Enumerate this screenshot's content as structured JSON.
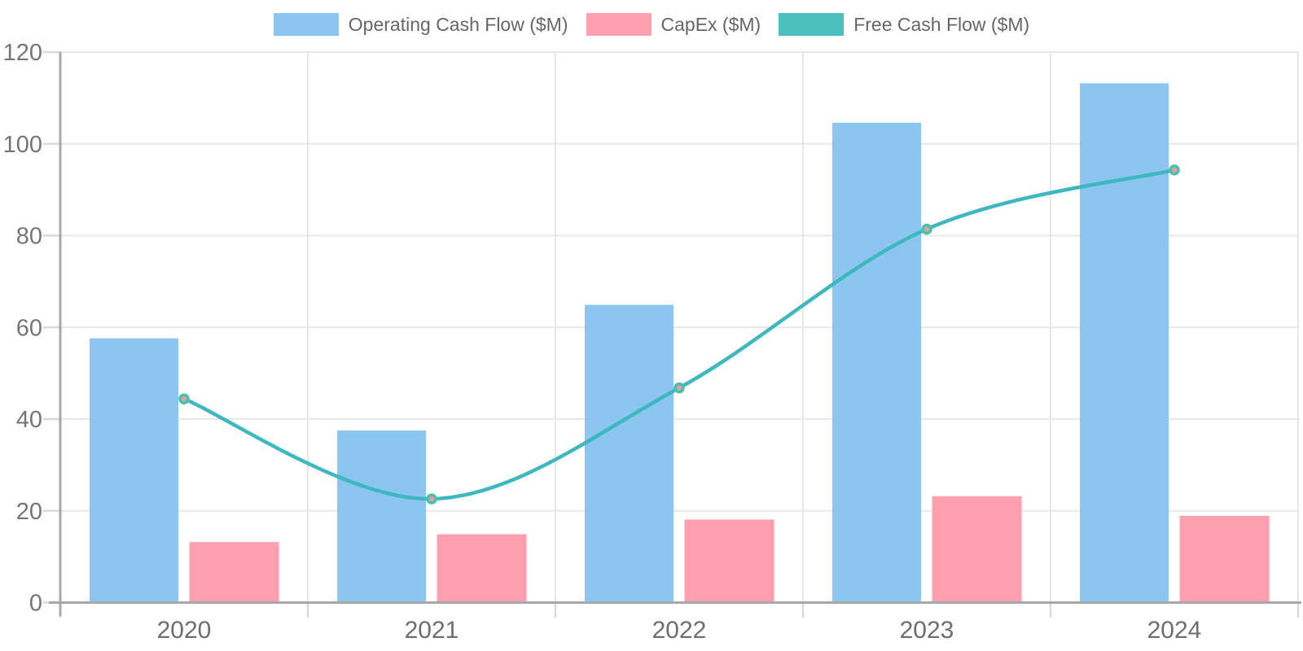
{
  "chart_data": {
    "type": "combo_bar_line",
    "title": "",
    "categories": [
      "2020",
      "2021",
      "2022",
      "2023",
      "2024"
    ],
    "series": [
      {
        "name": "Operating Cash Flow ($M)",
        "type": "bar",
        "color": "#8AC6F0",
        "values": [
          57.6,
          37.5,
          64.9,
          104.6,
          113.2
        ]
      },
      {
        "name": "CapEx ($M)",
        "type": "bar",
        "color": "#FFA0B1",
        "values": [
          13.2,
          14.9,
          18.1,
          23.2,
          18.9
        ]
      },
      {
        "name": "Free Cash Flow ($M)",
        "type": "line",
        "color": "#4ABFBB",
        "line_color": "#3EB7BE",
        "marker_edge_color": "#49BFB0",
        "marker_fill_color": "#E09FA3",
        "values": [
          44.4,
          22.6,
          46.8,
          81.4,
          94.3
        ]
      }
    ],
    "ylim": [
      0,
      120
    ],
    "yticks": [
      0,
      20,
      40,
      60,
      80,
      100,
      120
    ],
    "xlabel": "",
    "ylabel": "",
    "grid": true,
    "legend_position": "top"
  }
}
